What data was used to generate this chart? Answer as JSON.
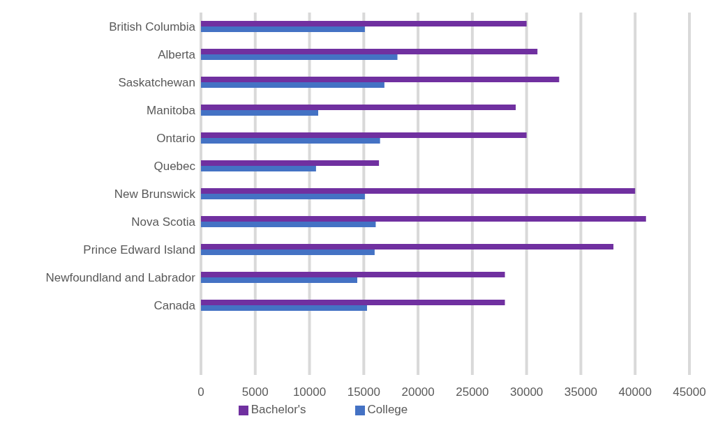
{
  "chart_data": {
    "type": "bar",
    "orientation": "horizontal",
    "categories": [
      "British Columbia",
      "Alberta",
      "Saskatchewan",
      "Manitoba",
      "Ontario",
      "Quebec",
      "New Brunswick",
      "Nova Scotia",
      "Prince Edward Island",
      "Newfoundland and Labrador",
      "Canada",
      null,
      null
    ],
    "series": [
      {
        "name": "Bachelor's",
        "color": "#7030a0",
        "values": [
          30000,
          31000,
          33000,
          29000,
          30000,
          16400,
          40000,
          41000,
          38000,
          28000,
          28000,
          null,
          null
        ]
      },
      {
        "name": "College",
        "color": "#4472c4",
        "values": [
          15100,
          18100,
          16900,
          10800,
          16500,
          10600,
          15100,
          16100,
          16000,
          14400,
          15300,
          null,
          null
        ]
      }
    ],
    "xlim": [
      0,
      45000
    ],
    "xticks": [
      0,
      5000,
      10000,
      15000,
      20000,
      25000,
      30000,
      35000,
      40000,
      45000
    ],
    "grid": "x",
    "legend": "bottom"
  }
}
